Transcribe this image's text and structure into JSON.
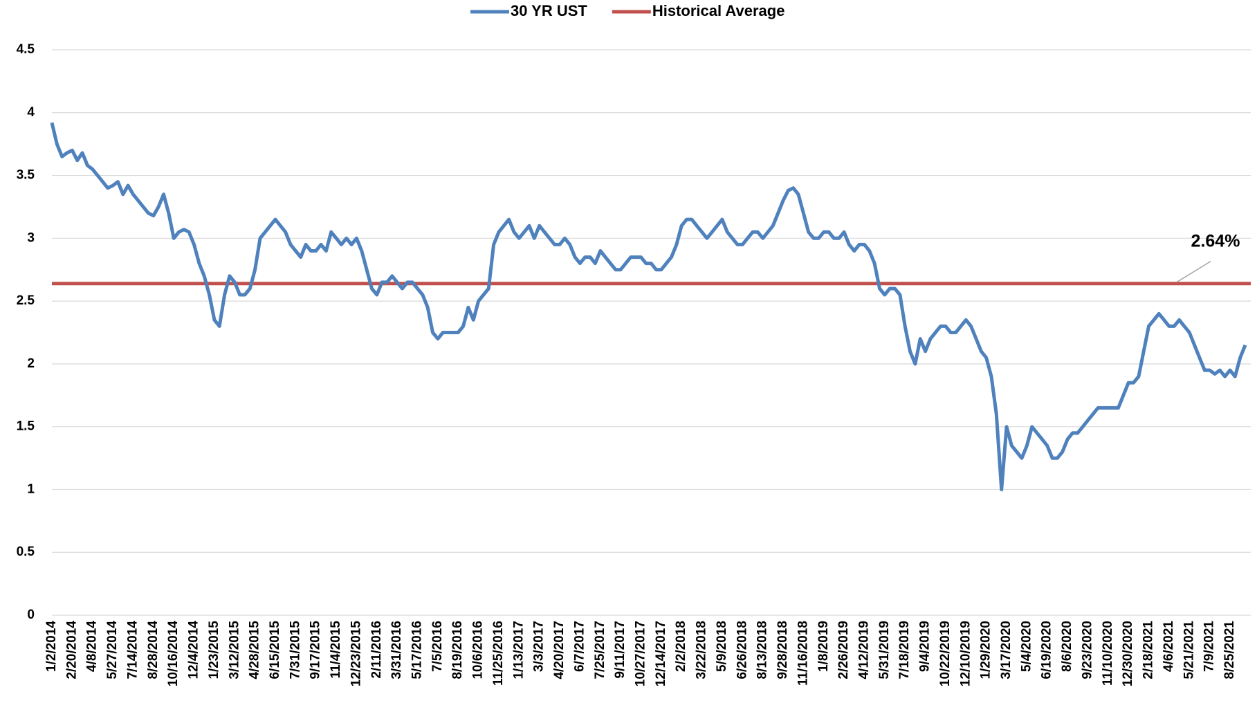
{
  "chart_data": {
    "type": "line",
    "categories": [
      "1/2/2014",
      null,
      null,
      null,
      "2/20/2014",
      null,
      null,
      null,
      "4/8/2014",
      null,
      null,
      null,
      "5/27/2014",
      null,
      null,
      null,
      "7/14/2014",
      null,
      null,
      null,
      "8/28/2014",
      null,
      null,
      null,
      "10/16/2014",
      null,
      null,
      null,
      "12/4/2014",
      null,
      null,
      null,
      "1/23/2015",
      null,
      null,
      null,
      "3/12/2015",
      null,
      null,
      null,
      "4/28/2015",
      null,
      null,
      null,
      "6/15/2015",
      null,
      null,
      null,
      "7/31/2015",
      null,
      null,
      null,
      "9/17/2015",
      null,
      null,
      null,
      "11/4/2015",
      null,
      null,
      null,
      "12/23/2015",
      null,
      null,
      null,
      "2/11/2016",
      null,
      null,
      null,
      "3/31/2016",
      null,
      null,
      null,
      "5/17/2016",
      null,
      null,
      null,
      "7/5/2016",
      null,
      null,
      null,
      "8/19/2016",
      null,
      null,
      null,
      "10/6/2016",
      null,
      null,
      null,
      "11/25/2016",
      null,
      null,
      null,
      "1/13/2017",
      null,
      null,
      null,
      "3/3/2017",
      null,
      null,
      null,
      "4/20/2017",
      null,
      null,
      null,
      "6/7/2017",
      null,
      null,
      null,
      "7/25/2017",
      null,
      null,
      null,
      "9/11/2017",
      null,
      null,
      null,
      "10/27/2017",
      null,
      null,
      null,
      "12/14/2017",
      null,
      null,
      null,
      "2/2/2018",
      null,
      null,
      null,
      "3/22/2018",
      null,
      null,
      null,
      "5/9/2018",
      null,
      null,
      null,
      "6/26/2018",
      null,
      null,
      null,
      "8/13/2018",
      null,
      null,
      null,
      "9/28/2018",
      null,
      null,
      null,
      "11/16/2018",
      null,
      null,
      null,
      "1/8/2019",
      null,
      null,
      null,
      "2/26/2019",
      null,
      null,
      null,
      "4/12/2019",
      null,
      null,
      null,
      "5/31/2019",
      null,
      null,
      null,
      "7/18/2019",
      null,
      null,
      null,
      "9/4/2019",
      null,
      null,
      null,
      "10/22/2019",
      null,
      null,
      null,
      "12/10/2019",
      null,
      null,
      null,
      "1/29/2020",
      null,
      null,
      null,
      "3/17/2020",
      null,
      null,
      null,
      "5/4/2020",
      null,
      null,
      null,
      "6/19/2020",
      null,
      null,
      null,
      "8/6/2020",
      null,
      null,
      null,
      "9/23/2020",
      null,
      null,
      null,
      "11/10/2020",
      null,
      null,
      null,
      "12/30/2020",
      null,
      null,
      null,
      "2/18/2021",
      null,
      null,
      null,
      "4/6/2021",
      null,
      null,
      null,
      "5/21/2021",
      null,
      null,
      null,
      "7/9/2021",
      null,
      null,
      null,
      "8/25/2021",
      null,
      null,
      null
    ],
    "series": [
      {
        "name": "30 YR UST",
        "color": "#4f81bd",
        "values": [
          3.92,
          3.75,
          3.65,
          3.68,
          3.7,
          3.62,
          3.68,
          3.58,
          3.55,
          3.5,
          3.45,
          3.4,
          3.42,
          3.45,
          3.35,
          3.42,
          3.35,
          3.3,
          3.25,
          3.2,
          3.18,
          3.25,
          3.35,
          3.2,
          3.0,
          3.05,
          3.07,
          3.05,
          2.95,
          2.8,
          2.7,
          2.55,
          2.35,
          2.3,
          2.55,
          2.7,
          2.65,
          2.55,
          2.55,
          2.6,
          2.75,
          3.0,
          3.05,
          3.1,
          3.15,
          3.1,
          3.05,
          2.95,
          2.9,
          2.85,
          2.95,
          2.9,
          2.9,
          2.95,
          2.9,
          3.05,
          3.0,
          2.95,
          3.0,
          2.95,
          3.0,
          2.9,
          2.75,
          2.6,
          2.55,
          2.65,
          2.65,
          2.7,
          2.65,
          2.6,
          2.65,
          2.65,
          2.6,
          2.55,
          2.45,
          2.25,
          2.2,
          2.25,
          2.25,
          2.25,
          2.25,
          2.3,
          2.45,
          2.35,
          2.5,
          2.55,
          2.6,
          2.95,
          3.05,
          3.1,
          3.15,
          3.05,
          3.0,
          3.05,
          3.1,
          3.0,
          3.1,
          3.05,
          3.0,
          2.95,
          2.95,
          3.0,
          2.95,
          2.85,
          2.8,
          2.85,
          2.85,
          2.8,
          2.9,
          2.85,
          2.8,
          2.75,
          2.75,
          2.8,
          2.85,
          2.85,
          2.85,
          2.8,
          2.8,
          2.75,
          2.75,
          2.8,
          2.85,
          2.95,
          3.1,
          3.15,
          3.15,
          3.1,
          3.05,
          3.0,
          3.05,
          3.1,
          3.15,
          3.05,
          3.0,
          2.95,
          2.95,
          3.0,
          3.05,
          3.05,
          3.0,
          3.05,
          3.1,
          3.2,
          3.3,
          3.38,
          3.4,
          3.35,
          3.2,
          3.05,
          3.0,
          3.0,
          3.05,
          3.05,
          3.0,
          3.0,
          3.05,
          2.95,
          2.9,
          2.95,
          2.95,
          2.9,
          2.8,
          2.6,
          2.55,
          2.6,
          2.6,
          2.55,
          2.3,
          2.1,
          2.0,
          2.2,
          2.1,
          2.2,
          2.25,
          2.3,
          2.3,
          2.25,
          2.25,
          2.3,
          2.35,
          2.3,
          2.2,
          2.1,
          2.05,
          1.9,
          1.6,
          1.0,
          1.5,
          1.35,
          1.3,
          1.25,
          1.35,
          1.5,
          1.45,
          1.4,
          1.35,
          1.25,
          1.25,
          1.3,
          1.4,
          1.45,
          1.45,
          1.5,
          1.55,
          1.6,
          1.65,
          1.65,
          1.65,
          1.65,
          1.65,
          1.75,
          1.85,
          1.85,
          1.9,
          2.1,
          2.3,
          2.35,
          2.4,
          2.35,
          2.3,
          2.3,
          2.35,
          2.3,
          2.25,
          2.15,
          2.05,
          1.95,
          1.95,
          1.92,
          1.95,
          1.9,
          1.95,
          1.9,
          2.05,
          2.15
        ]
      }
    ],
    "average": {
      "name": "Historical Average",
      "color": "#c0504d",
      "value": 2.64,
      "value_label": "2.64%"
    },
    "ylim": [
      0,
      4.5
    ],
    "yticks": [
      0,
      0.5,
      1,
      1.5,
      2,
      2.5,
      3,
      3.5,
      4,
      4.5
    ],
    "grid": true,
    "legend": "top"
  }
}
